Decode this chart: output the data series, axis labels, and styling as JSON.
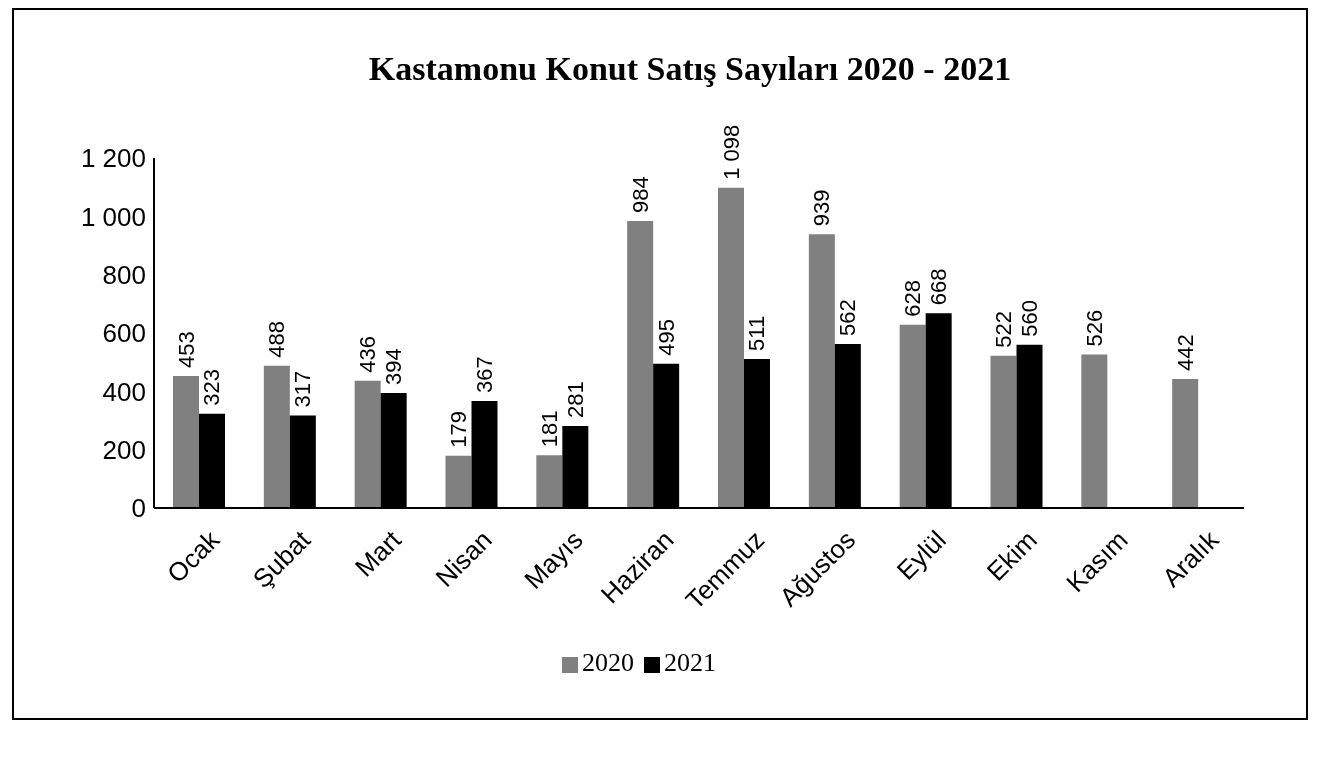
{
  "chart_data": {
    "type": "bar",
    "title": "Kastamonu Konut Satış Sayıları 2020 - 2021",
    "categories": [
      "Ocak",
      "Şubat",
      "Mart",
      "Nisan",
      "Mayıs",
      "Haziran",
      "Temmuz",
      "Ağustos",
      "Eylül",
      "Ekim",
      "Kasım",
      "Aralık"
    ],
    "series": [
      {
        "name": "2020",
        "color": "#808080",
        "values": [
          453,
          488,
          436,
          179,
          181,
          984,
          1098,
          939,
          628,
          522,
          526,
          442
        ],
        "value_labels": [
          "453",
          "488",
          "436",
          "179",
          "181",
          "984",
          "1 098",
          "939",
          "628",
          "522",
          "526",
          "442"
        ]
      },
      {
        "name": "2021",
        "color": "#000000",
        "values": [
          323,
          317,
          394,
          367,
          281,
          495,
          511,
          562,
          668,
          560,
          null,
          null
        ],
        "value_labels": [
          "323",
          "317",
          "394",
          "367",
          "281",
          "495",
          "511",
          "562",
          "668",
          "560",
          null,
          null
        ]
      }
    ],
    "ylim": [
      0,
      1200
    ],
    "yticks": [
      0,
      200,
      400,
      600,
      800,
      {
        "value": 1000,
        "label": "1 000"
      },
      {
        "value": 1200,
        "label": "1 200"
      }
    ],
    "grid": false,
    "legend": "bottom"
  }
}
